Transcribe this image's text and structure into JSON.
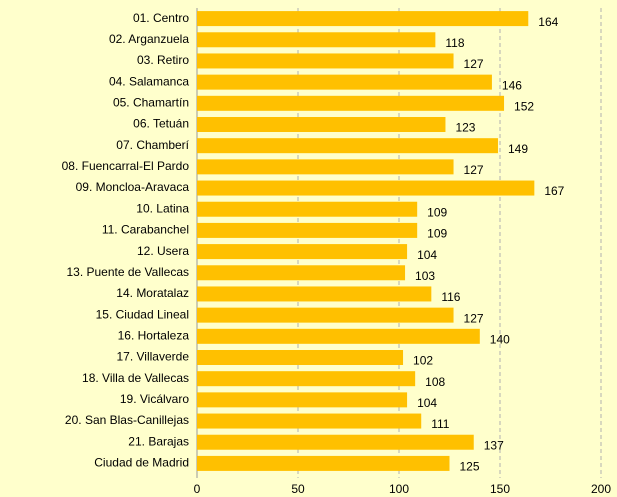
{
  "chart_data": {
    "type": "bar",
    "orientation": "horizontal",
    "categories": [
      "01. Centro",
      "02. Arganzuela",
      "03. Retiro",
      "04. Salamanca",
      "05. Chamartín",
      "06. Tetuán",
      "07. Chamberí",
      "08. Fuencarral-El Pardo",
      "09. Moncloa-Aravaca",
      "10. Latina",
      "11. Carabanchel",
      "12. Usera",
      "13. Puente de Vallecas",
      "14. Moratalaz",
      "15. Ciudad Lineal",
      "16. Hortaleza",
      "17. Villaverde",
      "18. Villa de Vallecas",
      "19. Vicálvaro",
      "20. San Blas-Canillejas",
      "21. Barajas",
      "Ciudad de Madrid"
    ],
    "values": [
      164,
      118,
      127,
      146,
      152,
      123,
      149,
      127,
      167,
      109,
      109,
      104,
      103,
      116,
      127,
      140,
      102,
      108,
      104,
      111,
      137,
      125
    ],
    "color": "#ffc000",
    "xlim": [
      0,
      200
    ],
    "xticks": [
      0,
      50,
      100,
      150,
      200
    ],
    "grid": true
  }
}
